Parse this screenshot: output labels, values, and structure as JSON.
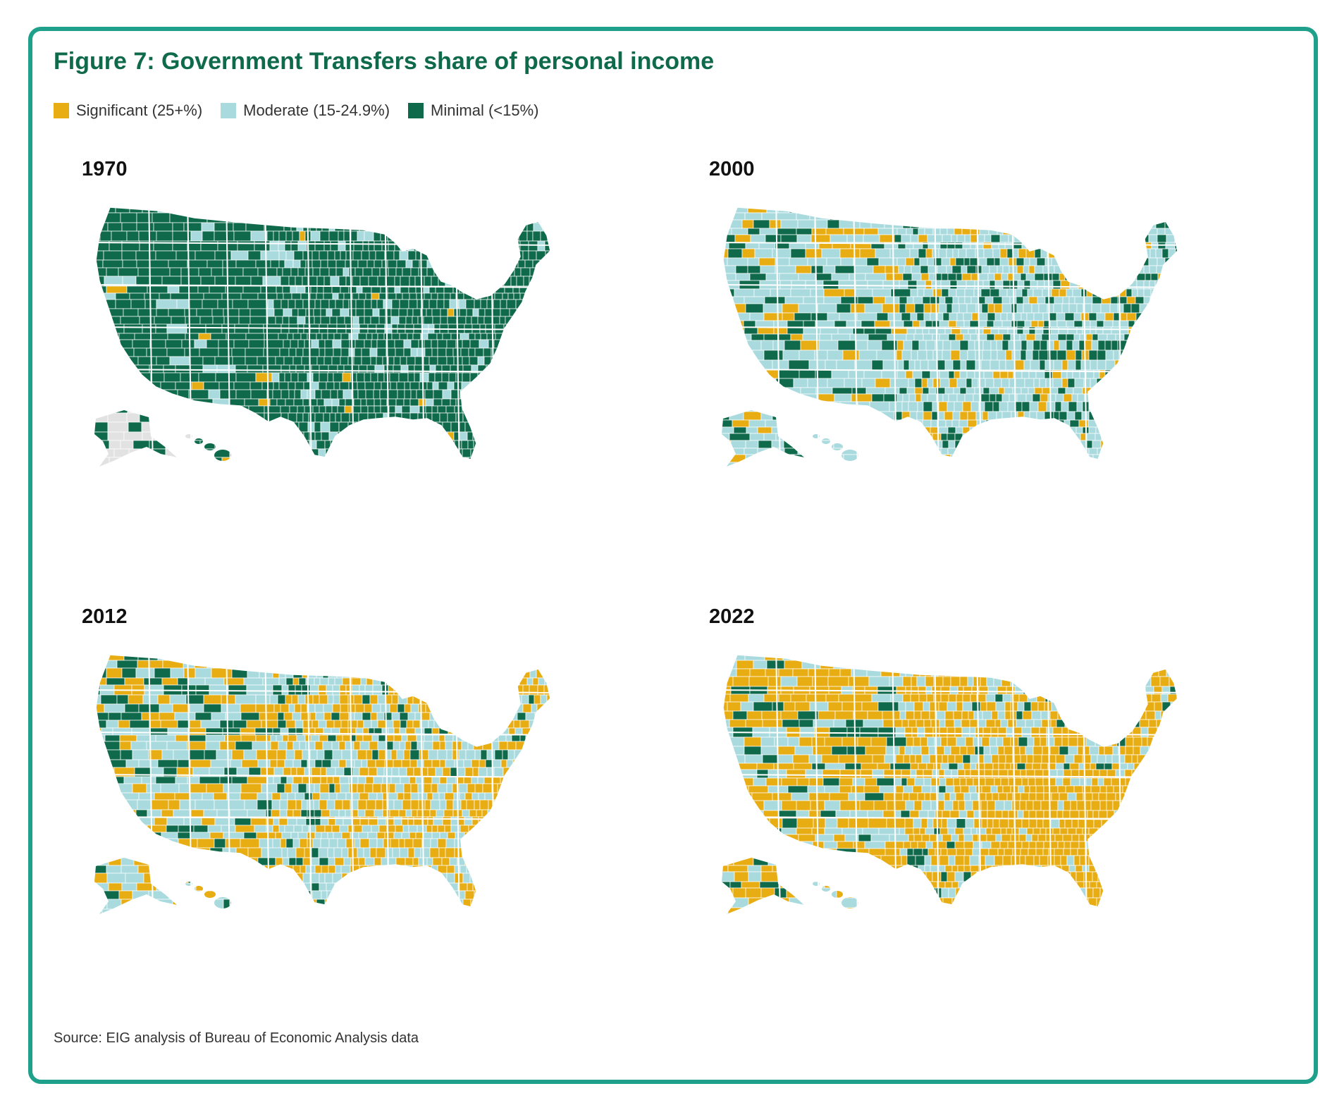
{
  "title": "Figure 7: Government Transfers share of personal income",
  "legend": [
    {
      "label": "Significant (25+%)",
      "color": "#e8ad12"
    },
    {
      "label": "Moderate (15-24.9%)",
      "color": "#a9dade"
    },
    {
      "label": "Minimal (<15%)",
      "color": "#0f6a4c"
    }
  ],
  "colors": {
    "significant": "#e8ad12",
    "moderate": "#a9dade",
    "minimal": "#0f6a4c",
    "no_data": "#e2e2e2",
    "frame": "#1fa08a"
  },
  "maps": [
    {
      "year": "1970",
      "mix": {
        "significant": 0.01,
        "moderate": 0.1,
        "minimal": 0.89
      }
    },
    {
      "year": "2000",
      "mix": {
        "significant": 0.13,
        "moderate": 0.62,
        "minimal": 0.25
      }
    },
    {
      "year": "2012",
      "mix": {
        "significant": 0.42,
        "moderate": 0.43,
        "minimal": 0.15
      }
    },
    {
      "year": "2022",
      "mix": {
        "significant": 0.62,
        "moderate": 0.3,
        "minimal": 0.08
      }
    }
  ],
  "source": "Source: EIG analysis of Bureau of Economic Analysis data"
}
